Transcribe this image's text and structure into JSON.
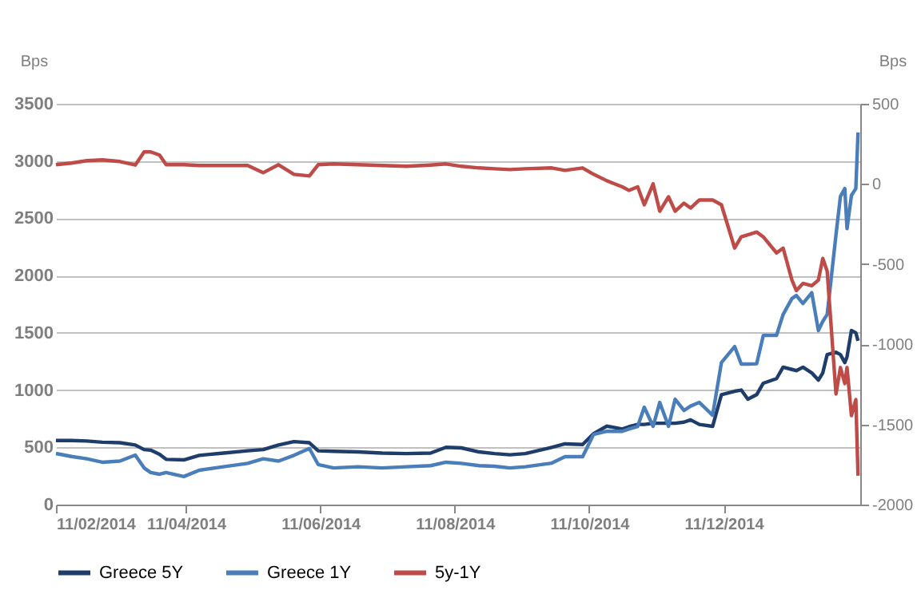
{
  "chart_data": {
    "type": "line",
    "ylabel": "Bps",
    "y2label": "Bps",
    "x": [
      "2014-02-11",
      "2014-02-18",
      "2014-02-25",
      "2014-03-04",
      "2014-03-12",
      "2014-03-19",
      "2014-03-23",
      "2014-03-26",
      "2014-03-30",
      "2014-04-02",
      "2014-04-10",
      "2014-04-17",
      "2014-04-28",
      "2014-05-09",
      "2014-05-16",
      "2014-05-23",
      "2014-05-30",
      "2014-06-06",
      "2014-06-10",
      "2014-06-17",
      "2014-06-28",
      "2014-07-09",
      "2014-07-20",
      "2014-07-31",
      "2014-08-07",
      "2014-08-14",
      "2014-08-22",
      "2014-08-29",
      "2014-09-05",
      "2014-09-12",
      "2014-09-24",
      "2014-09-30",
      "2014-10-08",
      "2014-10-13",
      "2014-10-19",
      "2014-10-26",
      "2014-10-29",
      "2014-11-02",
      "2014-11-05",
      "2014-11-09",
      "2014-11-12",
      "2014-11-16",
      "2014-11-19",
      "2014-11-23",
      "2014-11-26",
      "2014-11-30",
      "2014-12-06",
      "2014-12-10",
      "2014-12-16",
      "2014-12-19",
      "2014-12-22",
      "2014-12-26",
      "2014-12-29",
      "2015-01-04",
      "2015-01-07",
      "2015-01-11",
      "2015-01-13",
      "2015-01-16",
      "2015-01-20",
      "2015-01-23",
      "2015-01-25",
      "2015-01-27",
      "2015-01-31",
      "2015-02-02",
      "2015-02-04",
      "2015-02-05",
      "2015-02-07",
      "2015-02-09",
      "2015-02-10"
    ],
    "series": [
      {
        "name": "Greece 5Y",
        "color": "#1f3d6b",
        "values": [
          560,
          560,
          555,
          545,
          540,
          520,
          480,
          475,
          440,
          395,
          390,
          430,
          450,
          470,
          480,
          520,
          550,
          540,
          470,
          465,
          460,
          450,
          445,
          450,
          500,
          495,
          460,
          445,
          435,
          445,
          500,
          530,
          525,
          620,
          685,
          660,
          680,
          700,
          700,
          710,
          710,
          710,
          710,
          720,
          740,
          700,
          683,
          960,
          990,
          1000,
          920,
          960,
          1060,
          1100,
          1200,
          1180,
          1170,
          1200,
          1150,
          1087,
          1150,
          1310,
          1330,
          1310,
          1240,
          1290,
          1520,
          1500,
          1430
        ]
      },
      {
        "name": "Greece 1Y",
        "color": "#4a7ebb",
        "values": [
          446,
          420,
          400,
          370,
          380,
          432,
          320,
          280,
          265,
          280,
          245,
          300,
          330,
          360,
          400,
          380,
          430,
          490,
          350,
          320,
          330,
          320,
          330,
          340,
          370,
          360,
          340,
          335,
          320,
          330,
          362,
          418,
          418,
          613,
          640,
          640,
          660,
          683,
          850,
          683,
          892,
          683,
          920,
          822,
          860,
          892,
          780,
          1240,
          1380,
          1227,
          1227,
          1230,
          1477,
          1477,
          1660,
          1800,
          1826,
          1756,
          1850,
          1520,
          1600,
          1660,
          2356,
          2690,
          2760,
          2410,
          2700,
          2760,
          3250
        ]
      },
      {
        "name": "5y-1Y",
        "color": "#be4b48",
        "axis": "y2",
        "values": [
          120,
          130,
          145,
          150,
          140,
          118,
          200,
          200,
          180,
          120,
          120,
          115,
          115,
          115,
          70,
          120,
          60,
          50,
          120,
          125,
          120,
          115,
          110,
          118,
          125,
          110,
          100,
          95,
          90,
          95,
          100,
          85,
          100,
          60,
          20,
          -18,
          -40,
          -18,
          -130,
          0,
          -170,
          -80,
          -170,
          -120,
          -150,
          -100,
          -100,
          -130,
          -400,
          -330,
          -317,
          -300,
          -330,
          -430,
          -400,
          -600,
          -665,
          -620,
          -635,
          -600,
          -465,
          -545,
          -1310,
          -1145,
          -1245,
          -1145,
          -1445,
          -1345,
          -1820
        ]
      }
    ],
    "xlim": [
      "2014-02-11",
      "2015-02-11"
    ],
    "xticks": [
      {
        "value": "2014-02-11",
        "label": "11/02/2014"
      },
      {
        "value": "2014-04-11",
        "label": "11/04/2014"
      },
      {
        "value": "2014-06-11",
        "label": "11/06/2014"
      },
      {
        "value": "2014-08-11",
        "label": "11/08/2014"
      },
      {
        "value": "2014-10-11",
        "label": "11/10/2014"
      },
      {
        "value": "2014-12-11",
        "label": "11/12/2014"
      }
    ],
    "ylim": [
      0,
      3500
    ],
    "yticks": [
      0,
      500,
      1000,
      1500,
      2000,
      2500,
      3000,
      3500
    ],
    "y2lim": [
      -2000,
      500
    ],
    "y2ticks": [
      -2000,
      -1500,
      -1000,
      -500,
      0,
      500
    ],
    "grid": "y",
    "legend": "bottom"
  }
}
